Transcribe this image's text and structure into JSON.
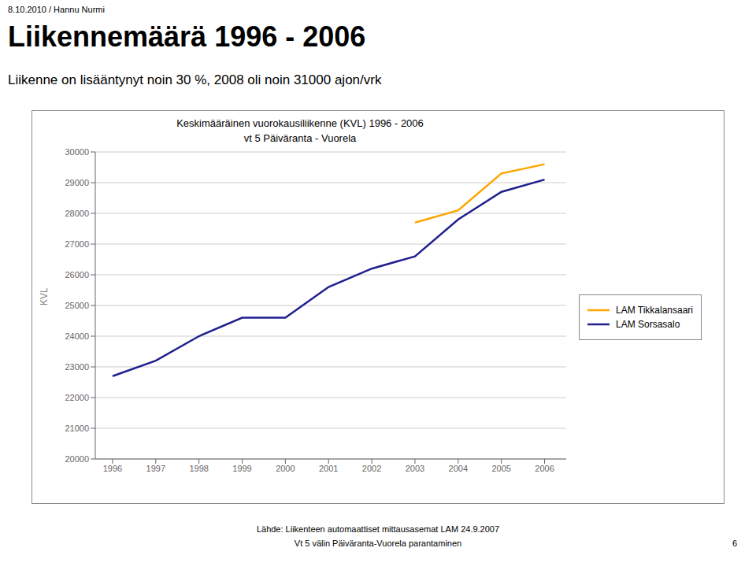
{
  "chart_data": {
    "type": "line",
    "title": "Liikennemäärä 1996 - 2006",
    "subtitle": "Liikenne on lisääntynyt noin 30 %, 2008 oli noin 31000 ajon/vrk",
    "annotations": [
      "8.10.2010 / Hannu Nurmi",
      "Keskimääräinen vuorokausiliikenne (KVL) 1996 - 2006",
      "vt 5 Päiväranta - Vuorela",
      "Lähde: Liikenteen automaattiset mittausasemat LAM 24.9.2007",
      "Vt 5 välin Päiväranta-Vuorela parantaminen",
      "6"
    ],
    "y_label": "KVL",
    "x": [
      1996,
      1997,
      1998,
      1999,
      2000,
      2001,
      2002,
      2003,
      2004,
      2005,
      2006
    ],
    "series": [
      {
        "name": "LAM Sorsasalo",
        "color": "#1f1f8f",
        "values": [
          22700,
          23200,
          24000,
          24600,
          24600,
          25600,
          26200,
          26600,
          27800,
          28700,
          29100
        ]
      },
      {
        "name": "LAM Tikkalansaari",
        "color": "#FFA500",
        "values": [
          null,
          null,
          null,
          null,
          null,
          null,
          null,
          27700,
          28100,
          29300,
          29600
        ]
      }
    ],
    "xlim": [
      1995.6,
      2006.5
    ],
    "xticks": [
      1996,
      1997,
      1998,
      1999,
      2000,
      2001,
      2002,
      2003,
      2004,
      2005,
      2006
    ],
    "ylim": [
      20000,
      30000
    ],
    "yticks": [
      20000,
      21000,
      22000,
      23000,
      24000,
      25000,
      26000,
      27000,
      28000,
      29000,
      30000
    ],
    "grid": true,
    "legend": "right"
  }
}
